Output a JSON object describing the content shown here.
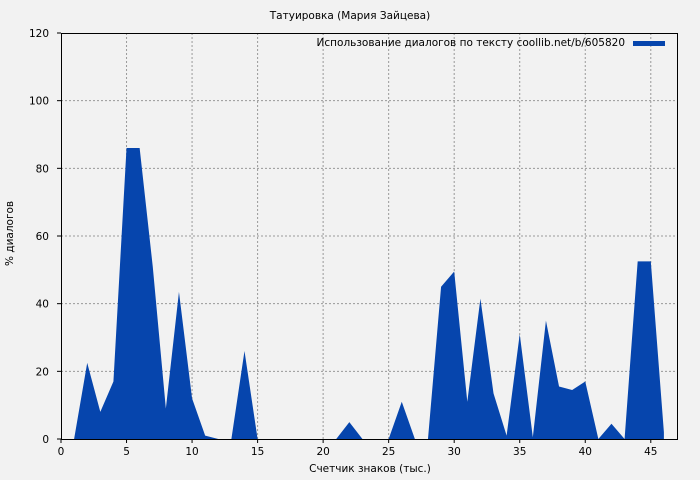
{
  "chart_data": {
    "type": "area",
    "title": "Татуировка (Мария Зайцева)",
    "xlabel": "Счетчик знаков (тыс.)",
    "ylabel": "% диалогов",
    "xlim": [
      0,
      47
    ],
    "ylim": [
      0,
      120
    ],
    "xticks": [
      0,
      5,
      10,
      15,
      20,
      25,
      30,
      35,
      40,
      45
    ],
    "yticks": [
      0,
      20,
      40,
      60,
      80,
      100,
      120
    ],
    "grid": true,
    "legend_position": "upper right",
    "series": [
      {
        "name": "Использование диалогов по тексту coollib.net/b/605820",
        "color": "#0645ad",
        "x": [
          1,
          2,
          3,
          4,
          5,
          6,
          7,
          8,
          9,
          10,
          11,
          12,
          13,
          14,
          15,
          16,
          17,
          18,
          19,
          20,
          21,
          22,
          23,
          24,
          25,
          26,
          27,
          28,
          29,
          30,
          31,
          32,
          33,
          34,
          35,
          36,
          37,
          38,
          39,
          40,
          41,
          42,
          43,
          44,
          45,
          46
        ],
        "values": [
          0,
          22.5,
          8,
          17,
          86,
          86,
          51,
          9,
          43.5,
          12,
          1,
          0,
          0,
          26,
          0,
          0,
          0,
          0,
          0,
          0,
          0,
          5,
          0,
          0,
          0,
          11,
          0,
          0,
          45,
          49.5,
          11,
          41.5,
          13.5,
          1,
          31,
          0.5,
          35,
          15.5,
          14.5,
          17,
          0,
          4.5,
          0,
          52.5,
          52.5,
          2
        ]
      }
    ]
  },
  "colors": {
    "background": "#f2f2f2",
    "series": "#0645ad",
    "grid": "#999999"
  }
}
